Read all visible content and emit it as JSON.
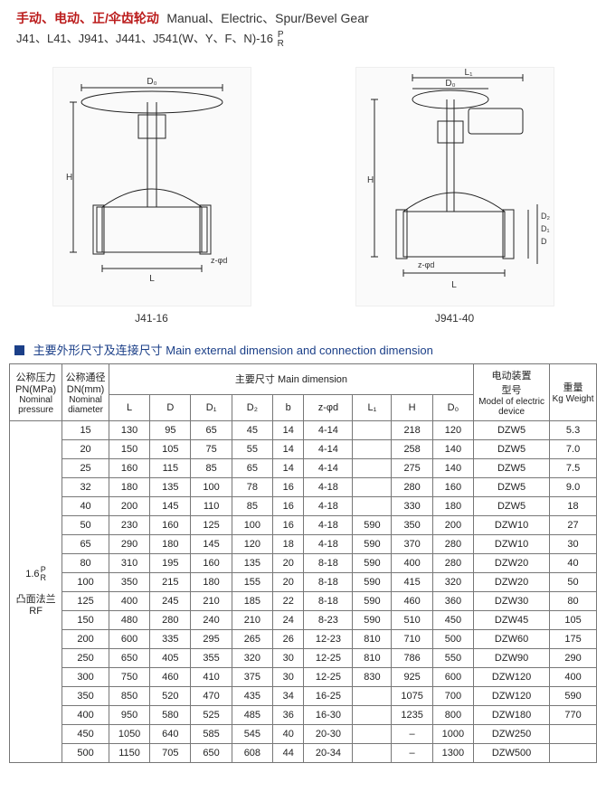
{
  "header": {
    "title_cn": "手动、电动、正/伞齿轮动",
    "title_en": "Manual、Electric、Spur/Bevel Gear",
    "subtitle_prefix": "J41、L41、J941、J441、J541(W、Y、F、N)-16"
  },
  "diagrams": {
    "left": {
      "caption": "J41-16",
      "labels": [
        "D₀",
        "H",
        "L",
        "z-φd"
      ]
    },
    "right": {
      "caption": "J941-40",
      "labels": [
        "L₁",
        "D₀",
        "H",
        "D₂",
        "D₁",
        "D",
        "L",
        "z-φd"
      ]
    }
  },
  "section": {
    "heading": "主要外形尺寸及连接尺寸 Main external dimension and connection dimension"
  },
  "table": {
    "headers": {
      "col_pressure": {
        "cn": "公称压力",
        "cn2": "PN(MPa)",
        "en": "Nominal pressure"
      },
      "col_dn": {
        "cn": "公称通径",
        "cn2": "DN(mm)",
        "en": "Nominal diameter"
      },
      "main_dim": "主要尺寸 Main dimension",
      "cols": [
        "L",
        "D",
        "D₁",
        "D₂",
        "b",
        "z-φd",
        "L₁",
        "H",
        "D₀"
      ],
      "device": {
        "cn": "电动装置",
        "cn2": "型号",
        "en": "Model of electric device"
      },
      "weight": {
        "cn": "重量",
        "en": "Kg Weight"
      }
    },
    "pressure_label": {
      "val": "1.6",
      "flange_cn": "凸面法兰",
      "flange_en": "RF"
    },
    "rows": [
      {
        "dn": "15",
        "L": "130",
        "D": "95",
        "D1": "65",
        "D2": "45",
        "b": "14",
        "zphid": "4-14",
        "L1": "",
        "H": "218",
        "D0": "120",
        "dev": "DZW5",
        "kg": "5.3"
      },
      {
        "dn": "20",
        "L": "150",
        "D": "105",
        "D1": "75",
        "D2": "55",
        "b": "14",
        "zphid": "4-14",
        "L1": "",
        "H": "258",
        "D0": "140",
        "dev": "DZW5",
        "kg": "7.0"
      },
      {
        "dn": "25",
        "L": "160",
        "D": "115",
        "D1": "85",
        "D2": "65",
        "b": "14",
        "zphid": "4-14",
        "L1": "",
        "H": "275",
        "D0": "140",
        "dev": "DZW5",
        "kg": "7.5"
      },
      {
        "dn": "32",
        "L": "180",
        "D": "135",
        "D1": "100",
        "D2": "78",
        "b": "16",
        "zphid": "4-18",
        "L1": "",
        "H": "280",
        "D0": "160",
        "dev": "DZW5",
        "kg": "9.0"
      },
      {
        "dn": "40",
        "L": "200",
        "D": "145",
        "D1": "110",
        "D2": "85",
        "b": "16",
        "zphid": "4-18",
        "L1": "",
        "H": "330",
        "D0": "180",
        "dev": "DZW5",
        "kg": "18"
      },
      {
        "dn": "50",
        "L": "230",
        "D": "160",
        "D1": "125",
        "D2": "100",
        "b": "16",
        "zphid": "4-18",
        "L1": "590",
        "H": "350",
        "D0": "200",
        "dev": "DZW10",
        "kg": "27"
      },
      {
        "dn": "65",
        "L": "290",
        "D": "180",
        "D1": "145",
        "D2": "120",
        "b": "18",
        "zphid": "4-18",
        "L1": "590",
        "H": "370",
        "D0": "280",
        "dev": "DZW10",
        "kg": "30"
      },
      {
        "dn": "80",
        "L": "310",
        "D": "195",
        "D1": "160",
        "D2": "135",
        "b": "20",
        "zphid": "8-18",
        "L1": "590",
        "H": "400",
        "D0": "280",
        "dev": "DZW20",
        "kg": "40"
      },
      {
        "dn": "100",
        "L": "350",
        "D": "215",
        "D1": "180",
        "D2": "155",
        "b": "20",
        "zphid": "8-18",
        "L1": "590",
        "H": "415",
        "D0": "320",
        "dev": "DZW20",
        "kg": "50"
      },
      {
        "dn": "125",
        "L": "400",
        "D": "245",
        "D1": "210",
        "D2": "185",
        "b": "22",
        "zphid": "8-18",
        "L1": "590",
        "H": "460",
        "D0": "360",
        "dev": "DZW30",
        "kg": "80"
      },
      {
        "dn": "150",
        "L": "480",
        "D": "280",
        "D1": "240",
        "D2": "210",
        "b": "24",
        "zphid": "8-23",
        "L1": "590",
        "H": "510",
        "D0": "450",
        "dev": "DZW45",
        "kg": "105"
      },
      {
        "dn": "200",
        "L": "600",
        "D": "335",
        "D1": "295",
        "D2": "265",
        "b": "26",
        "zphid": "12-23",
        "L1": "810",
        "H": "710",
        "D0": "500",
        "dev": "DZW60",
        "kg": "175"
      },
      {
        "dn": "250",
        "L": "650",
        "D": "405",
        "D1": "355",
        "D2": "320",
        "b": "30",
        "zphid": "12-25",
        "L1": "810",
        "H": "786",
        "D0": "550",
        "dev": "DZW90",
        "kg": "290"
      },
      {
        "dn": "300",
        "L": "750",
        "D": "460",
        "D1": "410",
        "D2": "375",
        "b": "30",
        "zphid": "12-25",
        "L1": "830",
        "H": "925",
        "D0": "600",
        "dev": "DZW120",
        "kg": "400"
      },
      {
        "dn": "350",
        "L": "850",
        "D": "520",
        "D1": "470",
        "D2": "435",
        "b": "34",
        "zphid": "16-25",
        "L1": "",
        "H": "1075",
        "D0": "700",
        "dev": "DZW120",
        "kg": "590"
      },
      {
        "dn": "400",
        "L": "950",
        "D": "580",
        "D1": "525",
        "D2": "485",
        "b": "36",
        "zphid": "16-30",
        "L1": "",
        "H": "1235",
        "D0": "800",
        "dev": "DZW180",
        "kg": "770"
      },
      {
        "dn": "450",
        "L": "1050",
        "D": "640",
        "D1": "585",
        "D2": "545",
        "b": "40",
        "zphid": "20-30",
        "L1": "",
        "H": "–",
        "D0": "1000",
        "dev": "DZW250",
        "kg": ""
      },
      {
        "dn": "500",
        "L": "1150",
        "D": "705",
        "D1": "650",
        "D2": "608",
        "b": "44",
        "zphid": "20-34",
        "L1": "",
        "H": "–",
        "D0": "1300",
        "dev": "DZW500",
        "kg": ""
      }
    ]
  },
  "colors": {
    "title_red": "#bb1b1b",
    "heading_blue": "#1b3f88",
    "border": "#777777",
    "text": "#222222",
    "bg": "#ffffff"
  }
}
